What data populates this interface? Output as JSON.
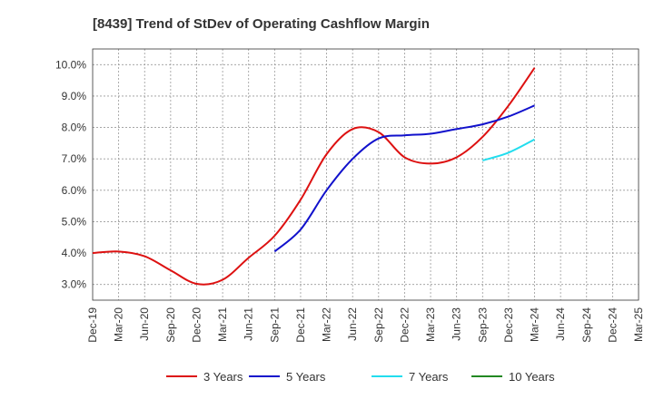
{
  "chart_data": {
    "type": "line",
    "title": "[8439]  Trend of StDev of Operating Cashflow Margin",
    "xlabel": "",
    "ylabel": "",
    "ylim": [
      2.5,
      10.5
    ],
    "yticks": [
      3.0,
      4.0,
      5.0,
      6.0,
      7.0,
      8.0,
      9.0,
      10.0
    ],
    "ytick_labels": [
      "3.0%",
      "4.0%",
      "5.0%",
      "6.0%",
      "7.0%",
      "8.0%",
      "9.0%",
      "10.0%"
    ],
    "categories": [
      "Dec-19",
      "Mar-20",
      "Jun-20",
      "Sep-20",
      "Dec-20",
      "Mar-21",
      "Jun-21",
      "Sep-21",
      "Dec-21",
      "Mar-22",
      "Jun-22",
      "Sep-22",
      "Dec-22",
      "Mar-23",
      "Jun-23",
      "Sep-23",
      "Dec-23",
      "Mar-24",
      "Jun-24",
      "Sep-24",
      "Dec-24",
      "Mar-25"
    ],
    "grid": true,
    "legend_position": "bottom",
    "series": [
      {
        "name": "3 Years",
        "color": "#dd1111",
        "values": [
          4.0,
          4.05,
          3.9,
          3.45,
          3.02,
          3.15,
          3.85,
          4.55,
          5.7,
          7.15,
          7.95,
          7.85,
          7.05,
          6.85,
          7.05,
          7.7,
          8.7,
          9.9,
          null,
          null,
          null,
          null
        ]
      },
      {
        "name": "5 Years",
        "color": "#1111cc",
        "values": [
          null,
          null,
          null,
          null,
          null,
          null,
          null,
          4.05,
          4.75,
          6.0,
          7.0,
          7.65,
          7.75,
          7.8,
          7.95,
          8.1,
          8.35,
          8.7,
          null,
          null,
          null,
          null
        ]
      },
      {
        "name": "7 Years",
        "color": "#22ddee",
        "values": [
          null,
          null,
          null,
          null,
          null,
          null,
          null,
          null,
          null,
          null,
          null,
          null,
          null,
          null,
          null,
          6.95,
          7.2,
          7.62,
          null,
          null,
          null,
          null
        ]
      },
      {
        "name": "10 Years",
        "color": "#228822",
        "values": [
          null,
          null,
          null,
          null,
          null,
          null,
          null,
          null,
          null,
          null,
          null,
          null,
          null,
          null,
          null,
          null,
          null,
          null,
          null,
          null,
          null,
          null
        ]
      }
    ]
  }
}
